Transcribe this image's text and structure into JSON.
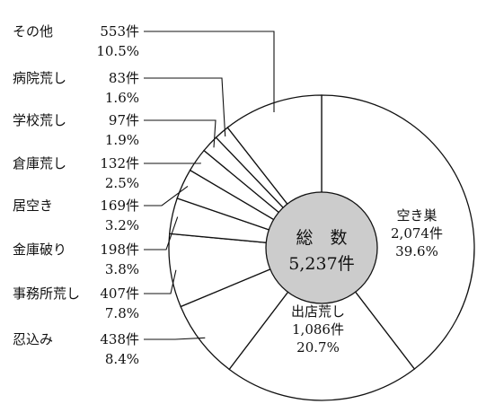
{
  "chart_data": {
    "type": "pie",
    "style": "donut",
    "center": {
      "title": "総　数",
      "total": "5,237件"
    },
    "slice_fill": "#ffffff",
    "center_fill": "#cccccc",
    "stroke": "#111111",
    "slices": [
      {
        "name": "空き巣",
        "count": 2074,
        "count_text": "2,074件",
        "percent": 39.6,
        "percent_text": "39.6%"
      },
      {
        "name": "出店荒し",
        "count": 1086,
        "count_text": "1,086件",
        "percent": 20.7,
        "percent_text": "20.7%"
      },
      {
        "name": "忍込み",
        "count": 438,
        "count_text": "438件",
        "percent": 8.4,
        "percent_text": "8.4%"
      },
      {
        "name": "事務所荒し",
        "count": 407,
        "count_text": "407件",
        "percent": 7.8,
        "percent_text": "7.8%"
      },
      {
        "name": "金庫破り",
        "count": 198,
        "count_text": "198件",
        "percent": 3.8,
        "percent_text": "3.8%"
      },
      {
        "name": "居空き",
        "count": 169,
        "count_text": "169件",
        "percent": 3.2,
        "percent_text": "3.2%"
      },
      {
        "name": "倉庫荒し",
        "count": 132,
        "count_text": "132件",
        "percent": 2.5,
        "percent_text": "2.5%"
      },
      {
        "name": "学校荒し",
        "count": 97,
        "count_text": "97件",
        "percent": 1.9,
        "percent_text": "1.9%"
      },
      {
        "name": "病院荒し",
        "count": 83,
        "count_text": "83件",
        "percent": 1.6,
        "percent_text": "1.6%"
      },
      {
        "name": "その他",
        "count": 553,
        "count_text": "553件",
        "percent": 10.5,
        "percent_text": "10.5%"
      }
    ]
  }
}
